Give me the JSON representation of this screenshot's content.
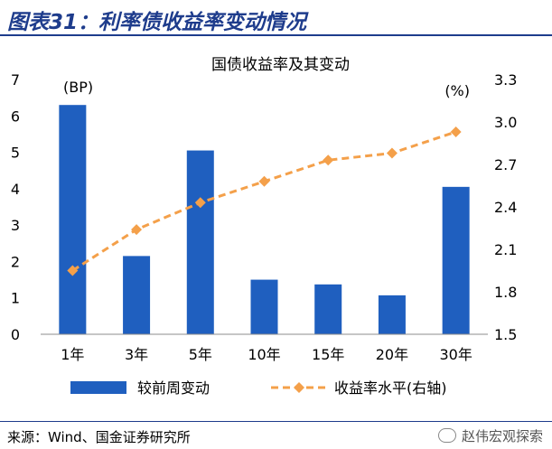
{
  "figure": {
    "title": "图表31：利率债收益率变动情况",
    "source": "来源：Wind、国金证券研究所",
    "watermark": "赵伟宏观探索"
  },
  "chart_data": {
    "type": "bar+line",
    "title": "国债收益率及其变动",
    "categories": [
      "1年",
      "3年",
      "5年",
      "10年",
      "15年",
      "20年",
      "30年"
    ],
    "series": [
      {
        "name": "较前周变动",
        "type": "bar",
        "axis": "left",
        "color": "#1f5fbf",
        "values": [
          6.3,
          2.15,
          5.05,
          1.5,
          1.37,
          1.07,
          4.05
        ]
      },
      {
        "name": "收益率水平(右轴)",
        "type": "line",
        "axis": "right",
        "color": "#f4a04a",
        "values": [
          1.95,
          2.24,
          2.43,
          2.58,
          2.73,
          2.78,
          2.93
        ]
      }
    ],
    "left_axis": {
      "unit_label": "(BP)",
      "min": 0,
      "max": 7,
      "step": 1,
      "ticks": [
        "0",
        "1",
        "2",
        "3",
        "4",
        "5",
        "6",
        "7"
      ]
    },
    "right_axis": {
      "unit_label": "(%)",
      "min": 1.5,
      "max": 3.3,
      "step": 0.3,
      "ticks": [
        "1.5",
        "1.8",
        "2.1",
        "2.4",
        "2.7",
        "3.0",
        "3.3"
      ]
    },
    "legend_position": "bottom"
  }
}
